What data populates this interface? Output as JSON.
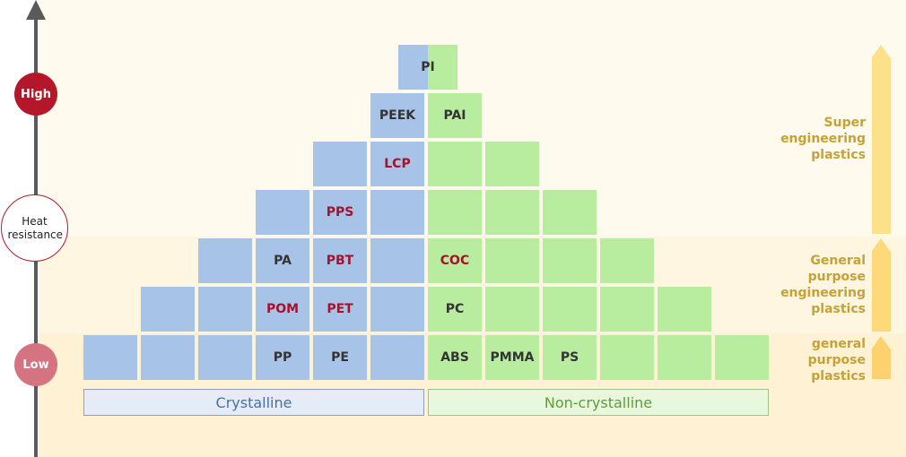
{
  "axis": {
    "high_label": "High",
    "low_label": "Low",
    "heat_label": "Heat resistance"
  },
  "groups": {
    "crystalline": "Crystalline",
    "non_crystalline": "Non-crystalline"
  },
  "categories": {
    "super": "Super engineering plastics",
    "general_engineering": "General purpose engineering plastics",
    "general": "general purpose plastics"
  },
  "cells": {
    "pi": "PI",
    "peek": "PEEK",
    "pai": "PAI",
    "lcp": "LCP",
    "pps": "PPS",
    "pa": "PA",
    "pbt": "PBT",
    "coc": "COC",
    "pom": "POM",
    "pet": "PET",
    "pc": "PC",
    "pp": "PP",
    "pe": "PE",
    "abs": "ABS",
    "pmma": "PMMA",
    "ps": "PS"
  },
  "colors": {
    "crystalline": "#a8c3e8",
    "non_crystalline": "#b8eda0",
    "highlight_text": "#a5122a",
    "high": "#b5172a",
    "low": "#d67381",
    "category_text": "#c5a236"
  }
}
